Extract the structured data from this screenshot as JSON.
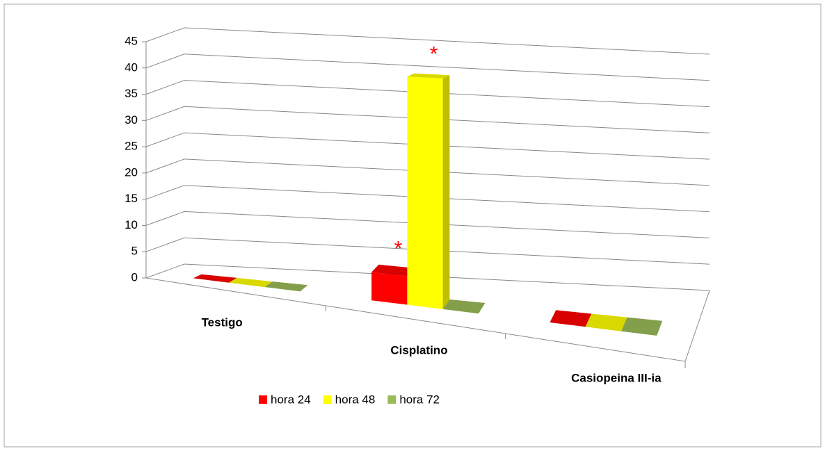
{
  "chart_data": {
    "type": "bar3d",
    "categories": [
      "Testigo",
      "Cisplatino",
      "Casiopeina III-ia"
    ],
    "series": [
      {
        "name": "hora 24",
        "color": "#ff0000",
        "values": [
          0,
          5,
          0
        ]
      },
      {
        "name": "hora 48",
        "color": "#ffff00",
        "values": [
          0,
          40,
          0
        ]
      },
      {
        "name": "hora 72",
        "color": "#9bbb59",
        "values": [
          0,
          0,
          0
        ]
      }
    ],
    "ylim": [
      0,
      45
    ],
    "yticks": [
      0,
      5,
      10,
      15,
      20,
      25,
      30,
      35,
      40,
      45
    ],
    "grid": true,
    "legend": "bottom",
    "annotations": [
      {
        "text": "*",
        "series": 0,
        "category": 1
      },
      {
        "text": "*",
        "series": 1,
        "category": 1
      }
    ]
  }
}
